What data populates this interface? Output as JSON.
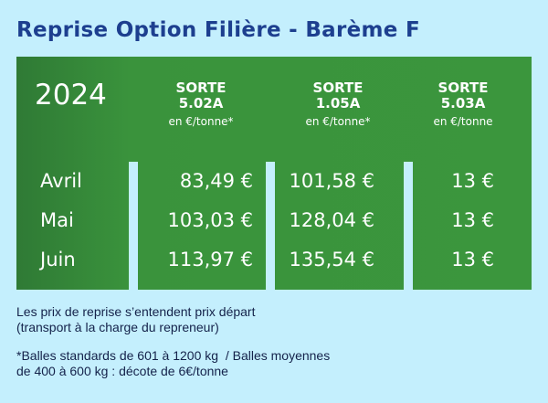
{
  "title": "Reprise Option Filière - Barème F",
  "table": {
    "year": "2024",
    "columns": [
      {
        "line1": "SORTE",
        "line2": "5.02A",
        "unit": "en €/tonne*"
      },
      {
        "line1": "SORTE",
        "line2": "1.05A",
        "unit": "en €/tonne*"
      },
      {
        "line1": "SORTE",
        "line2": "5.03A",
        "unit": "en €/tonne"
      }
    ],
    "rows": [
      {
        "month": "Avril",
        "values": [
          "83,49 €",
          "101,58 €",
          "13 €"
        ]
      },
      {
        "month": "Mai",
        "values": [
          "103,03 €",
          "128,04 €",
          "13 €"
        ]
      },
      {
        "month": "Juin",
        "values": [
          "113,97 €",
          "135,54 €",
          "13 €"
        ]
      }
    ]
  },
  "notes": {
    "line1": "Les prix de reprise s’entendent prix départ",
    "line2": "(transport à la charge du repreneur)",
    "line3": "*Balles standards de 601 à 1200 kg  / Balles moyennes",
    "line4": "de 400 à 600 kg : décote de 6€/tonne"
  },
  "colors": {
    "background": "#c4effd",
    "green": "#3b963d",
    "title": "#1d3f8f"
  }
}
